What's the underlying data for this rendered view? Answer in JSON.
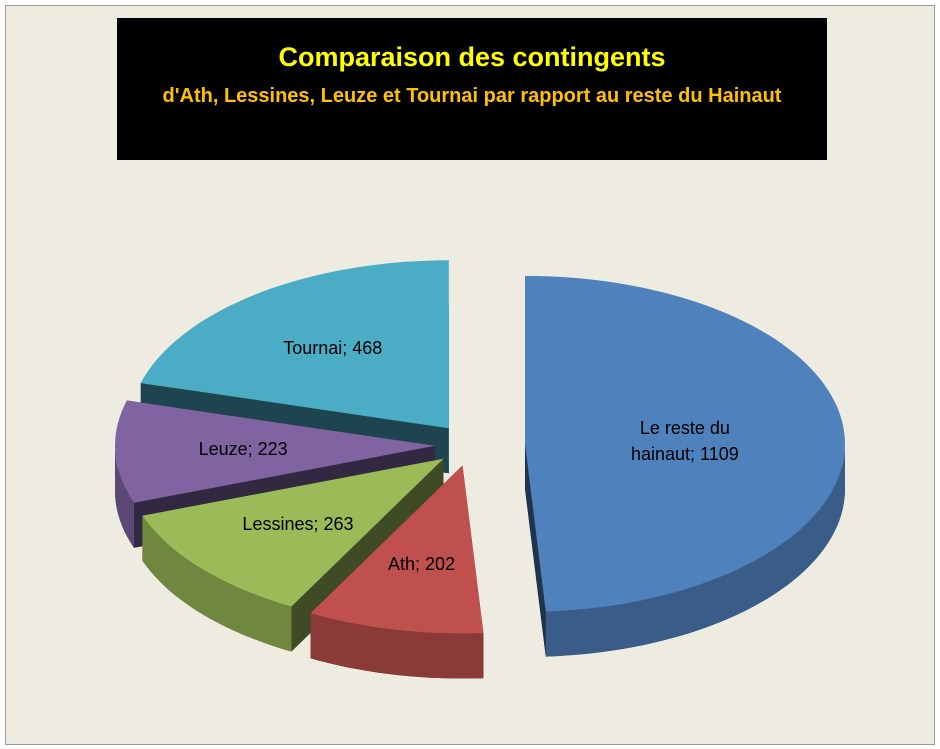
{
  "chart_data": {
    "type": "pie",
    "title": "Comparaison des contingents",
    "subtitle": "d'Ath, Lessines, Leuze et Tournai par rapport au reste du Hainaut",
    "categories": [
      "Le reste du hainaut",
      "Ath",
      "Lessines",
      "Leuze",
      "Tournai"
    ],
    "values": [
      1109,
      202,
      263,
      223,
      468
    ],
    "value_labels": [
      "Le reste du hainaut; 1109",
      "Ath; 202",
      "Lessines; 263",
      "Leuze; 223",
      "Tournai; 468"
    ],
    "colors": [
      "#4f81bd",
      "#c0504d",
      "#9bbb59",
      "#8064a2",
      "#4bacc6"
    ]
  }
}
